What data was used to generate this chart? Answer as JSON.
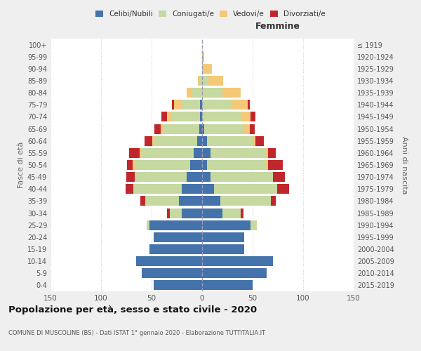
{
  "age_groups": [
    "0-4",
    "5-9",
    "10-14",
    "15-19",
    "20-24",
    "25-29",
    "30-34",
    "35-39",
    "40-44",
    "45-49",
    "50-54",
    "55-59",
    "60-64",
    "65-69",
    "70-74",
    "75-79",
    "80-84",
    "85-89",
    "90-94",
    "95-99",
    "100+"
  ],
  "birth_years": [
    "2015-2019",
    "2010-2014",
    "2005-2009",
    "2000-2004",
    "1995-1999",
    "1990-1994",
    "1985-1989",
    "1980-1984",
    "1975-1979",
    "1970-1974",
    "1965-1969",
    "1960-1964",
    "1955-1959",
    "1950-1954",
    "1945-1949",
    "1940-1944",
    "1935-1939",
    "1930-1934",
    "1925-1929",
    "1920-1924",
    "≤ 1919"
  ],
  "male": {
    "celibi": [
      48,
      60,
      65,
      52,
      48,
      52,
      20,
      23,
      20,
      15,
      12,
      8,
      5,
      3,
      2,
      2,
      0,
      0,
      0,
      0,
      0
    ],
    "coniugati": [
      0,
      0,
      0,
      0,
      0,
      3,
      12,
      33,
      48,
      52,
      55,
      52,
      42,
      35,
      28,
      18,
      10,
      2,
      0,
      0,
      0
    ],
    "vedovi": [
      0,
      0,
      0,
      0,
      0,
      0,
      0,
      0,
      0,
      0,
      2,
      2,
      2,
      3,
      5,
      8,
      5,
      2,
      0,
      0,
      0
    ],
    "divorziati": [
      0,
      0,
      0,
      0,
      0,
      0,
      3,
      5,
      8,
      8,
      5,
      10,
      8,
      6,
      5,
      2,
      0,
      0,
      0,
      0,
      0
    ]
  },
  "female": {
    "nubili": [
      50,
      64,
      70,
      42,
      42,
      48,
      20,
      18,
      12,
      8,
      5,
      8,
      5,
      2,
      0,
      0,
      0,
      0,
      0,
      0,
      0
    ],
    "coniugate": [
      0,
      0,
      0,
      0,
      0,
      6,
      18,
      50,
      62,
      62,
      58,
      55,
      45,
      40,
      38,
      30,
      20,
      6,
      2,
      0,
      0
    ],
    "vedove": [
      0,
      0,
      0,
      0,
      0,
      0,
      0,
      0,
      0,
      0,
      2,
      2,
      3,
      5,
      10,
      15,
      18,
      15,
      8,
      2,
      0
    ],
    "divorziate": [
      0,
      0,
      0,
      0,
      0,
      0,
      3,
      5,
      12,
      12,
      15,
      8,
      8,
      5,
      5,
      2,
      0,
      0,
      0,
      0,
      0
    ]
  },
  "colors": {
    "celibi_nubili": "#4472aa",
    "coniugati": "#c5d9a0",
    "vedovi": "#f5c878",
    "divorziati": "#c0272d"
  },
  "xlim": 150,
  "title": "Popolazione per età, sesso e stato civile - 2020",
  "subtitle": "COMUNE DI MUSCOLINE (BS) - Dati ISTAT 1° gennaio 2020 - Elaborazione TUTTITALIA.IT",
  "ylabel_left": "Fasce di età",
  "ylabel_right": "Anni di nascita",
  "xlabel_female": "Femmine",
  "bg_color": "#efefef",
  "plot_bg": "#ffffff"
}
